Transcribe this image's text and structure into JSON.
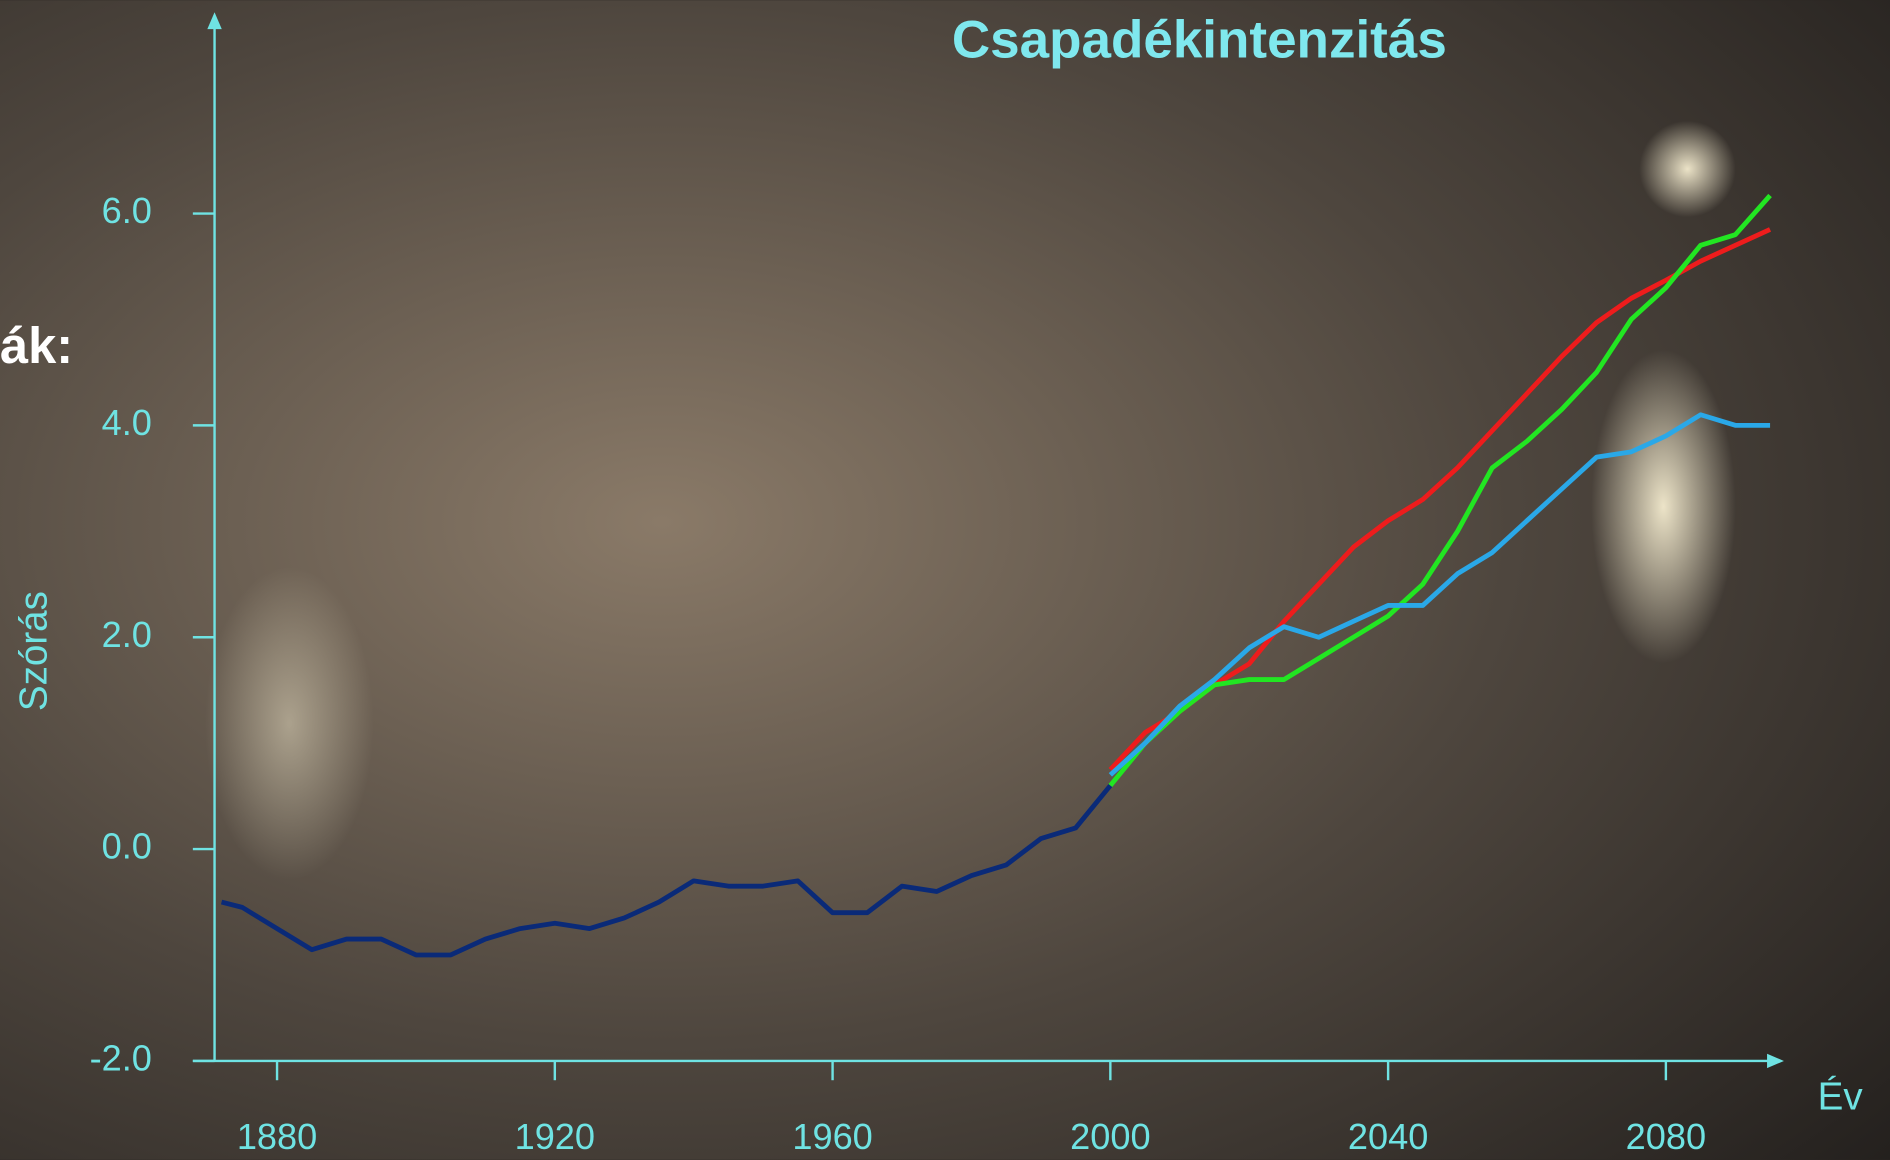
{
  "chart_data": {
    "type": "line",
    "title": "Csapadékintenzitás",
    "y_label": "Szórás",
    "x_label": "Év",
    "annotation": "ák:",
    "x": [
      1872,
      1875,
      1880,
      1885,
      1890,
      1895,
      1900,
      1905,
      1910,
      1915,
      1920,
      1925,
      1930,
      1935,
      1940,
      1945,
      1950,
      1955,
      1960,
      1965,
      1970,
      1975,
      1980,
      1985,
      1990,
      1995,
      2000,
      2005,
      2010,
      2015,
      2020,
      2025,
      2030,
      2035,
      2040,
      2045,
      2050,
      2055,
      2060,
      2065,
      2070,
      2075,
      2080,
      2085,
      2090,
      2095
    ],
    "series": [
      {
        "color": "#0a2a78",
        "values": [
          -0.5,
          -0.55,
          -0.75,
          -0.95,
          -0.85,
          -0.85,
          -1.0,
          -1.0,
          -0.85,
          -0.75,
          -0.7,
          -0.75,
          -0.65,
          -0.5,
          -0.3,
          -0.35,
          -0.35,
          -0.3,
          -0.6,
          -0.6,
          -0.35,
          -0.4,
          -0.25,
          -0.15,
          0.1,
          0.2,
          0.6,
          null,
          null,
          null,
          null,
          null,
          null,
          null,
          null,
          null,
          null,
          null,
          null,
          null,
          null,
          null,
          null,
          null,
          null,
          null
        ]
      },
      {
        "color": "#ee1c1c",
        "values": [
          null,
          null,
          null,
          null,
          null,
          null,
          null,
          null,
          null,
          null,
          null,
          null,
          null,
          null,
          null,
          null,
          null,
          null,
          null,
          null,
          null,
          null,
          null,
          null,
          null,
          null,
          0.75,
          1.1,
          1.3,
          1.55,
          1.75,
          2.15,
          2.5,
          2.85,
          3.1,
          3.3,
          3.6,
          3.95,
          4.3,
          4.65,
          4.97,
          5.2,
          5.37,
          5.55,
          5.7,
          5.85
        ]
      },
      {
        "color": "#22e622",
        "values": [
          null,
          null,
          null,
          null,
          null,
          null,
          null,
          null,
          null,
          null,
          null,
          null,
          null,
          null,
          null,
          null,
          null,
          null,
          null,
          null,
          null,
          null,
          null,
          null,
          null,
          null,
          0.6,
          1.0,
          1.3,
          1.55,
          1.6,
          1.6,
          1.8,
          2.0,
          2.2,
          2.5,
          3.0,
          3.6,
          3.85,
          4.15,
          4.5,
          5.0,
          5.3,
          5.7,
          5.8,
          6.17
        ]
      },
      {
        "color": "#2aa8e8",
        "values": [
          null,
          null,
          null,
          null,
          null,
          null,
          null,
          null,
          null,
          null,
          null,
          null,
          null,
          null,
          null,
          null,
          null,
          null,
          null,
          null,
          null,
          null,
          null,
          null,
          null,
          null,
          0.7,
          1.0,
          1.35,
          1.6,
          1.9,
          2.1,
          2.0,
          2.15,
          2.3,
          2.3,
          2.6,
          2.8,
          3.1,
          3.4,
          3.7,
          3.75,
          3.9,
          4.1,
          4.0,
          4.0
        ]
      }
    ],
    "xlim": [
      1871,
      2097
    ],
    "ylim": [
      -2,
      7.9
    ],
    "xticks": [
      1880,
      1920,
      1960,
      2000,
      2040,
      2080
    ],
    "yticks": [
      {
        "value": -2,
        "label": "-2.0"
      },
      {
        "value": 0,
        "label": "0.0"
      },
      {
        "value": 2,
        "label": "2.0"
      },
      {
        "value": 4,
        "label": "4.0"
      },
      {
        "value": 6,
        "label": "6.0"
      }
    ],
    "axis_color": "#6fe3e3"
  }
}
